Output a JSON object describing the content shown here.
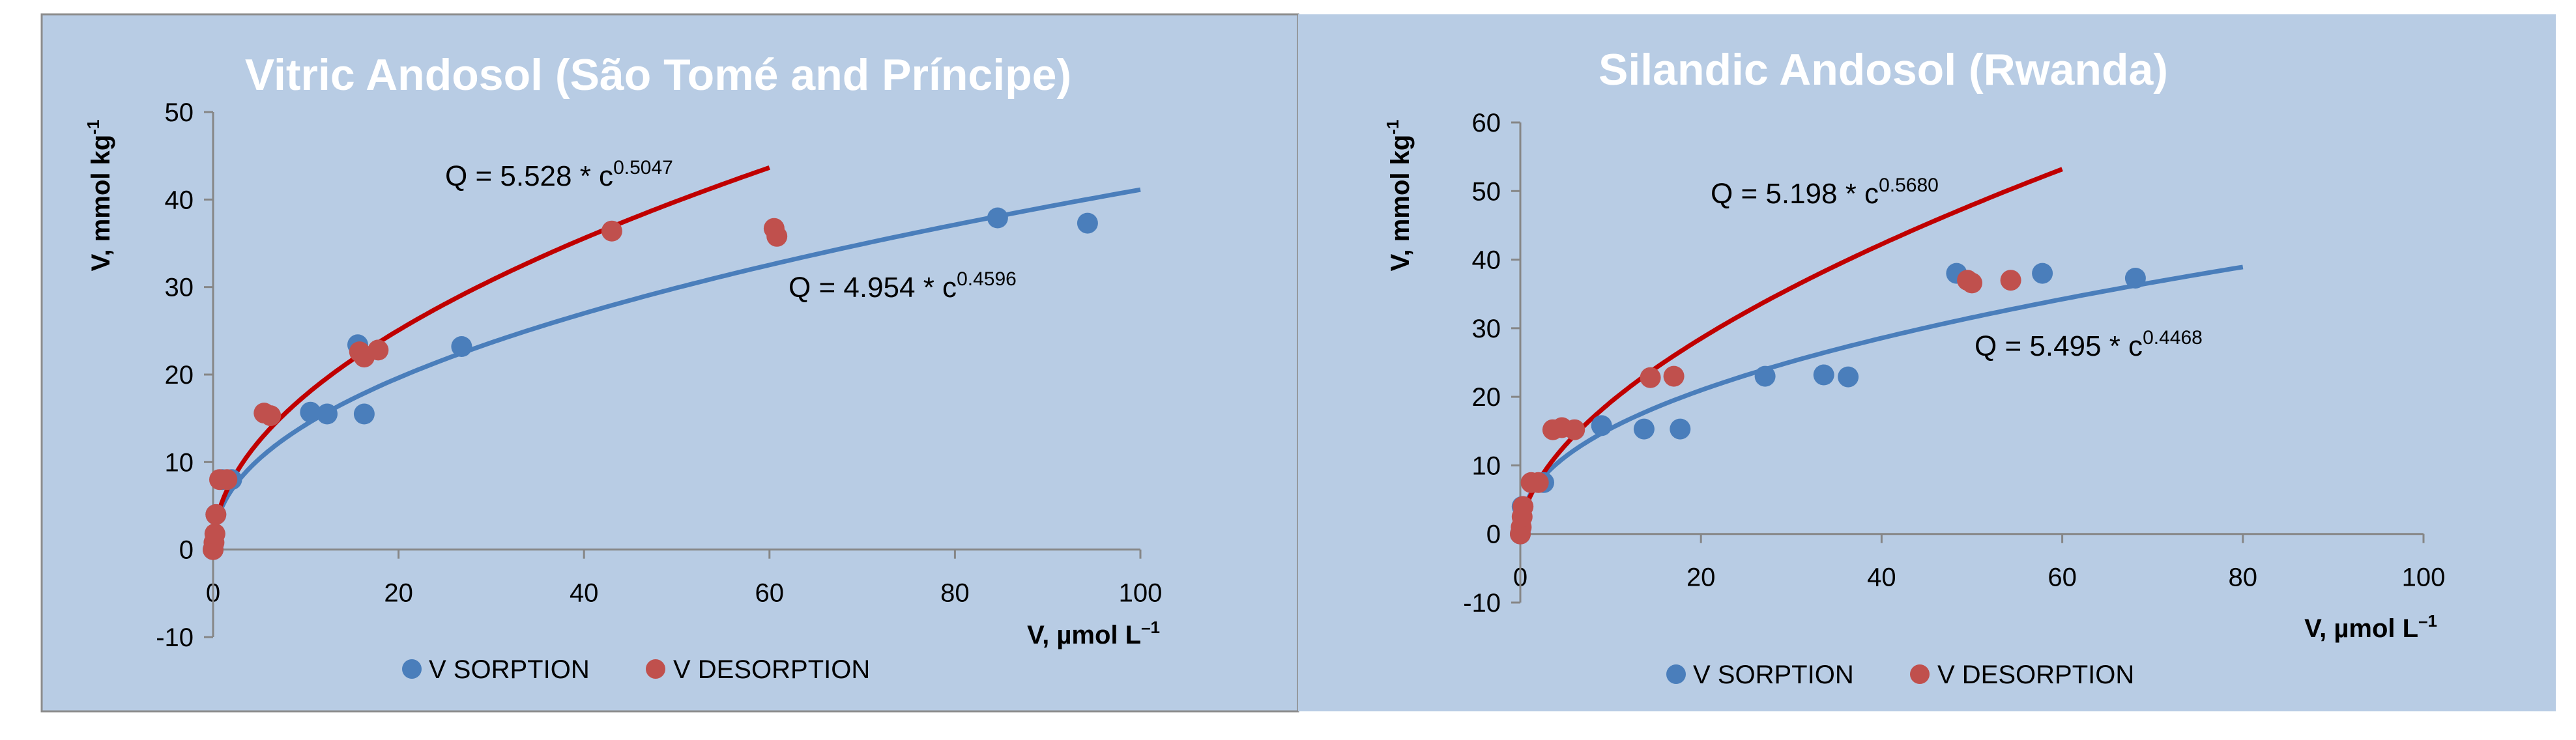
{
  "colors": {
    "panel_bg": "#b8cce4",
    "title": "#ffffff",
    "axis": "#868686",
    "text": "#000000",
    "sorption": "#4a7ebb",
    "desorption": "#c0504d",
    "desorption_fit": "#c00000"
  },
  "chart_data": [
    {
      "type": "scatter",
      "title": "Vitric Andosol (São Tomé and Príncipe)",
      "ylabel": "V, mmol kg",
      "ylabel_sup": "-1",
      "xlabel": "V, µmol L",
      "xlabel_sup": "–1",
      "xlim": [
        0,
        100
      ],
      "ylim": [
        -10,
        50
      ],
      "xticks": [
        0,
        20,
        40,
        60,
        80,
        100
      ],
      "yticks": [
        -10,
        0,
        10,
        20,
        30,
        40,
        50
      ],
      "x_tick_labels": [
        "0",
        "20",
        "40",
        "60",
        "80",
        "100"
      ],
      "y_tick_labels": [
        "-10",
        "0",
        "10",
        "20",
        "30",
        "40",
        "50"
      ],
      "legend": [
        "V SORPTION",
        "V DESORPTION"
      ],
      "legend_position": "bottom",
      "series": [
        {
          "name": "V SORPTION",
          "points": [
            [
              0,
              0
            ],
            [
              0.3,
              4
            ],
            [
              1,
              8
            ],
            [
              2,
              8
            ],
            [
              10.5,
              15.7
            ],
            [
              12.3,
              15.5
            ],
            [
              16.3,
              15.5
            ],
            [
              15.6,
              23.4
            ],
            [
              26.8,
              23.2
            ],
            [
              84.6,
              37.9
            ],
            [
              94.3,
              37.3
            ]
          ]
        },
        {
          "name": "V DESORPTION",
          "points": [
            [
              0,
              0
            ],
            [
              0.1,
              0.8
            ],
            [
              0.2,
              1.8
            ],
            [
              0.3,
              4
            ],
            [
              0.7,
              8
            ],
            [
              1.5,
              8
            ],
            [
              5.5,
              15.6
            ],
            [
              6.2,
              15.3
            ],
            [
              15.8,
              22.6
            ],
            [
              16.3,
              22
            ],
            [
              17.8,
              22.8
            ],
            [
              43,
              36.4
            ],
            [
              60.5,
              36.7
            ],
            [
              60.8,
              35.8
            ]
          ]
        }
      ],
      "fits": [
        {
          "name": "V SORPTION fit",
          "a": 4.954,
          "b": 0.4596,
          "x_max": 100,
          "label_prefix": "Q = 4.954 * c",
          "label_exp": "0.4596"
        },
        {
          "name": "V DESORPTION fit",
          "a": 5.528,
          "b": 0.5047,
          "x_max": 60,
          "label_prefix": "Q = 5.528 * c",
          "label_exp": "0.5047"
        }
      ]
    },
    {
      "type": "scatter",
      "title": "Silandic Andosol (Rwanda)",
      "ylabel": "V, mmol kg",
      "ylabel_sup": "-1",
      "xlabel": "V, µmol L",
      "xlabel_sup": "–1",
      "xlim": [
        0,
        100
      ],
      "ylim": [
        -10,
        60
      ],
      "xticks": [
        0,
        20,
        40,
        60,
        80,
        100
      ],
      "yticks": [
        -10,
        0,
        10,
        20,
        30,
        40,
        50,
        60
      ],
      "x_tick_labels": [
        "0",
        "20",
        "40",
        "60",
        "80",
        "100"
      ],
      "y_tick_labels": [
        "-10",
        "0",
        "10",
        "20",
        "30",
        "40",
        "50",
        "60"
      ],
      "legend": [
        "V SORPTION",
        "V DESORPTION"
      ],
      "legend_position": "bottom",
      "series": [
        {
          "name": "V SORPTION",
          "points": [
            [
              0,
              0
            ],
            [
              0.2,
              4
            ],
            [
              2.6,
              7.5
            ],
            [
              9,
              15.8
            ],
            [
              13.7,
              15.3
            ],
            [
              17.7,
              15.3
            ],
            [
              27.1,
              23
            ],
            [
              33.6,
              23.2
            ],
            [
              36.3,
              22.9
            ],
            [
              48.3,
              38
            ],
            [
              57.8,
              38
            ],
            [
              68.1,
              37.3
            ]
          ]
        },
        {
          "name": "V DESORPTION",
          "points": [
            [
              0,
              0
            ],
            [
              0.1,
              1
            ],
            [
              0.2,
              2.5
            ],
            [
              0.3,
              4
            ],
            [
              1.2,
              7.5
            ],
            [
              2,
              7.5
            ],
            [
              3.6,
              15.2
            ],
            [
              4.6,
              15.5
            ],
            [
              6,
              15.2
            ],
            [
              14.4,
              22.8
            ],
            [
              17,
              23
            ],
            [
              49.5,
              37
            ],
            [
              50,
              36.6
            ],
            [
              54.3,
              37
            ]
          ]
        }
      ],
      "fits": [
        {
          "name": "V SORPTION fit",
          "a": 5.495,
          "b": 0.4468,
          "x_max": 80,
          "label_prefix": "Q = 5.495 * c",
          "label_exp": "0.4468"
        },
        {
          "name": "V DESORPTION fit",
          "a": 5.198,
          "b": 0.568,
          "x_max": 60,
          "label_prefix": "Q = 5.198 * c",
          "label_exp": "0.5680"
        }
      ]
    }
  ]
}
